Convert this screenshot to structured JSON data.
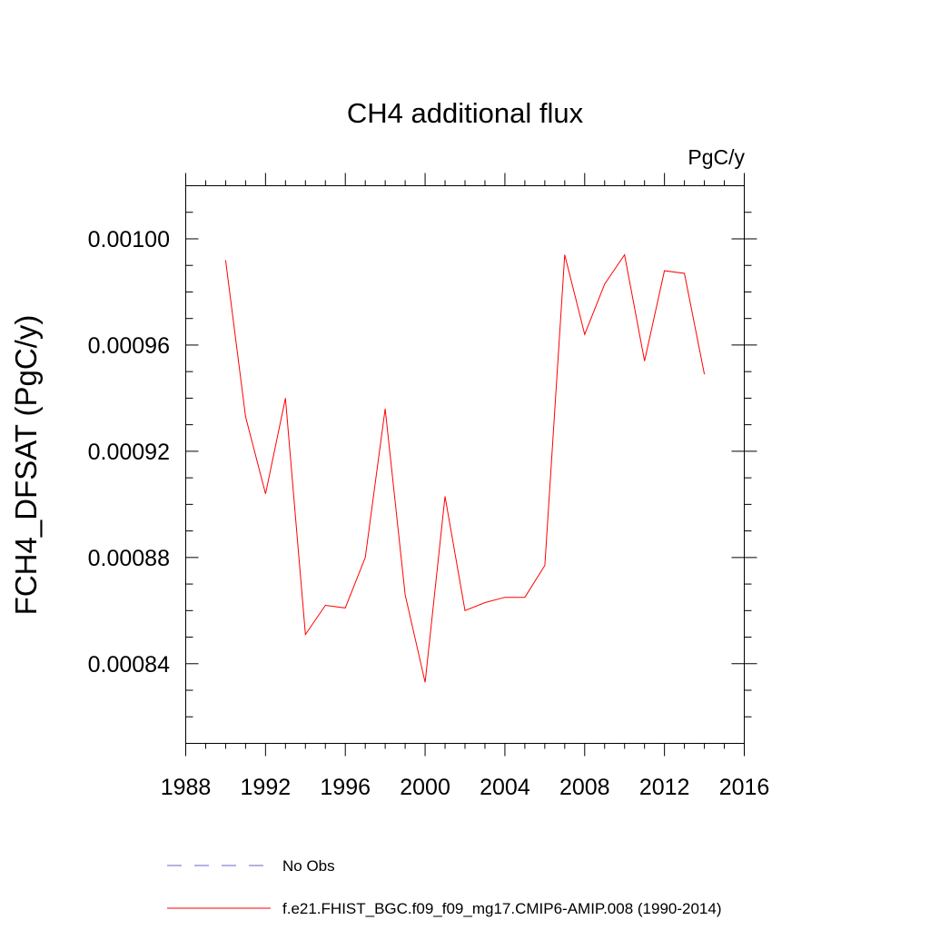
{
  "chart_data": {
    "type": "line",
    "title": "CH4 additional flux",
    "units": "PgC/y",
    "ylabel": "FCH4_DFSAT  (PgC/y)",
    "xlabel": "",
    "xlim": [
      1988,
      2016
    ],
    "ylim": [
      0.00081,
      0.00102
    ],
    "xticks": [
      1988,
      1992,
      1996,
      2000,
      2004,
      2008,
      2012,
      2016
    ],
    "xtick_labels": [
      "1988",
      "1992",
      "1996",
      "2000",
      "2004",
      "2008",
      "2012",
      "2016"
    ],
    "yticks": [
      0.00084,
      0.00088,
      0.00092,
      0.00096,
      0.001
    ],
    "ytick_labels": [
      "0.00084",
      "0.00088",
      "0.00092",
      "0.00096",
      "0.00100"
    ],
    "grid": false,
    "legend_position": "bottom",
    "legend": [
      {
        "label": "No Obs",
        "color": "#6666cc",
        "style": "dashed"
      },
      {
        "label": "f.e21.FHIST_BGC.f09_f09_mg17.CMIP6-AMIP.008 (1990-2014)",
        "color": "#ff0000",
        "style": "solid"
      }
    ],
    "series": [
      {
        "name": "f.e21.FHIST_BGC.f09_f09_mg17.CMIP6-AMIP.008 (1990-2014)",
        "color": "#ff0000",
        "x": [
          1990,
          1991,
          1992,
          1993,
          1994,
          1995,
          1996,
          1997,
          1998,
          1999,
          2000,
          2001,
          2002,
          2003,
          2004,
          2005,
          2006,
          2007,
          2008,
          2009,
          2010,
          2011,
          2012,
          2013,
          2014
        ],
        "values": [
          0.000992,
          0.000933,
          0.000904,
          0.00094,
          0.000851,
          0.000862,
          0.000861,
          0.00088,
          0.000936,
          0.000866,
          0.000833,
          0.000903,
          0.00086,
          0.000863,
          0.000865,
          0.000865,
          0.000877,
          0.000994,
          0.000964,
          0.000983,
          0.000994,
          0.000954,
          0.000988,
          0.000987,
          0.000949
        ]
      }
    ]
  }
}
